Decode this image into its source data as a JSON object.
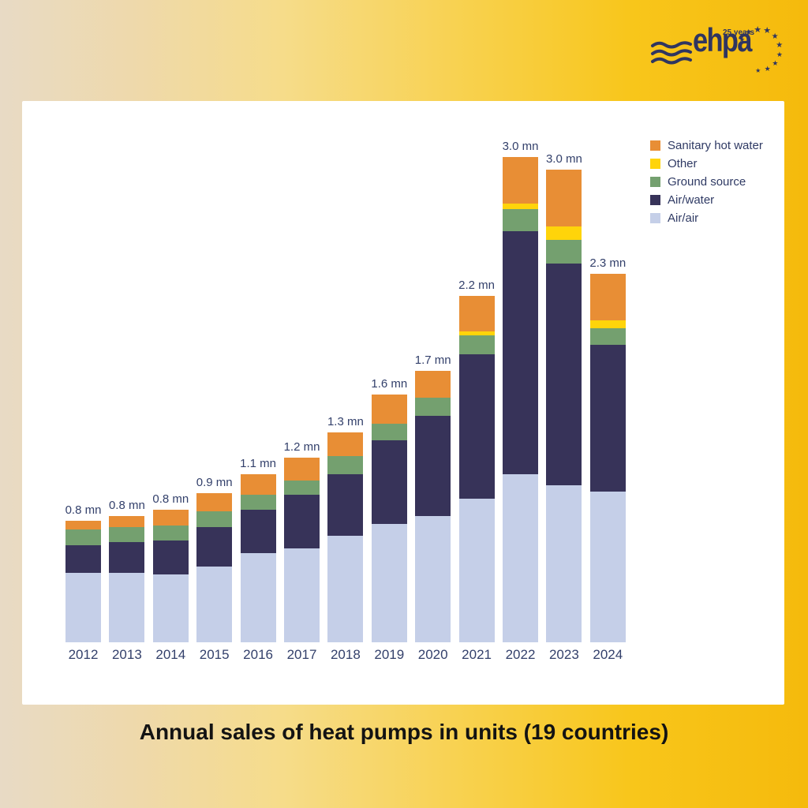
{
  "background": {
    "gradient_left": "#E8DAC5",
    "gradient_right": "#F5BA0C"
  },
  "logo": {
    "brand": "ehpa",
    "badge": "25 years",
    "color": "#2F3560",
    "star_count": 10
  },
  "card": {
    "bg": "#FFFFFF"
  },
  "title": {
    "text": "Annual sales of heat pumps in units (19 countries)"
  },
  "chart_data": {
    "type": "bar",
    "stacked": true,
    "title": "Annual sales of heat pumps in units (19 countries)",
    "unit": "mn (millions of units)",
    "categories": [
      "2012",
      "2013",
      "2014",
      "2015",
      "2016",
      "2017",
      "2018",
      "2019",
      "2020",
      "2021",
      "2022",
      "2023",
      "2024"
    ],
    "bar_total_labels": [
      "0.8 mn",
      "0.8 mn",
      "0.8 mn",
      "0.9 mn",
      "1.1 mn",
      "1.2 mn",
      "1.3 mn",
      "1.6 mn",
      "1.7 mn",
      "2.2 mn",
      "3.0 mn",
      "3.0 mn",
      "2.3 mn"
    ],
    "series": [
      {
        "name": "Air/air",
        "color": "#C5CFE8",
        "values": [
          0.43,
          0.43,
          0.42,
          0.47,
          0.55,
          0.58,
          0.66,
          0.73,
          0.78,
          0.89,
          1.04,
          0.97,
          0.93
        ]
      },
      {
        "name": "Air/water",
        "color": "#373359",
        "values": [
          0.17,
          0.19,
          0.21,
          0.24,
          0.27,
          0.33,
          0.38,
          0.52,
          0.62,
          0.89,
          1.5,
          1.37,
          0.91
        ]
      },
      {
        "name": "Ground source",
        "color": "#74A06F",
        "values": [
          0.1,
          0.09,
          0.09,
          0.1,
          0.09,
          0.09,
          0.11,
          0.1,
          0.11,
          0.12,
          0.14,
          0.15,
          0.1
        ]
      },
      {
        "name": "Other",
        "color": "#FFD40A",
        "values": [
          0,
          0,
          0,
          0,
          0,
          0,
          0,
          0,
          0,
          0.02,
          0.03,
          0.08,
          0.05
        ]
      },
      {
        "name": "Sanitary hot water",
        "color": "#E88E35",
        "values": [
          0.05,
          0.07,
          0.1,
          0.11,
          0.13,
          0.14,
          0.15,
          0.18,
          0.17,
          0.22,
          0.29,
          0.35,
          0.29
        ]
      }
    ],
    "legend_order": [
      "Sanitary hot water",
      "Other",
      "Ground source",
      "Air/water",
      "Air/air"
    ],
    "legend_position": "top-right",
    "grid": false,
    "ylim": [
      0,
      3.2
    ],
    "label_color": "#33406B"
  }
}
